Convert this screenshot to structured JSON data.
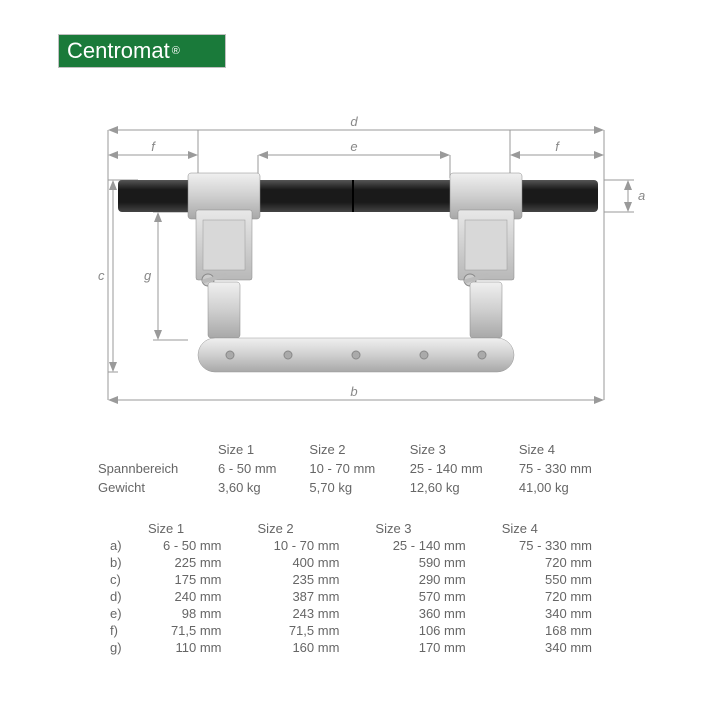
{
  "brand": {
    "name": "Centromat",
    "registered": "®",
    "bg": "#1a7a3a",
    "fg": "#ffffff"
  },
  "diagram": {
    "labels": {
      "a": "a",
      "b": "b",
      "c": "c",
      "d": "d",
      "e": "e",
      "f": "f",
      "g": "g"
    },
    "product_image_alt": "pipe clamp device photograph with dimension callouts",
    "colors": {
      "pipe": "#2a2a2a",
      "metal_light": "#d8d8d8",
      "metal_mid": "#b8b8b8",
      "metal_dark": "#9a9a9a",
      "dim_line": "#9a9a9a",
      "label": "#888888"
    }
  },
  "summary_table": {
    "header_blank": "",
    "headers": [
      "Size 1",
      "Size 2",
      "Size 3",
      "Size 4"
    ],
    "rows": [
      {
        "label": "Spannbereich",
        "values": [
          "6 - 50 mm",
          "10 - 70 mm",
          "25 - 140 mm",
          "75 - 330 mm"
        ]
      },
      {
        "label": "Gewicht",
        "values": [
          "3,60 kg",
          "5,70 kg",
          "12,60 kg",
          "41,00 kg"
        ]
      }
    ]
  },
  "dim_table": {
    "headers": [
      "Size 1",
      "Size 2",
      "Size 3",
      "Size 4"
    ],
    "rows": [
      {
        "key": "a)",
        "values": [
          "6 - 50 mm",
          "10 - 70 mm",
          "25 - 140 mm",
          "75 - 330 mm"
        ]
      },
      {
        "key": "b)",
        "values": [
          "225 mm",
          "400 mm",
          "590 mm",
          "720 mm"
        ]
      },
      {
        "key": "c)",
        "values": [
          "175 mm",
          "235 mm",
          "290 mm",
          "550 mm"
        ]
      },
      {
        "key": "d)",
        "values": [
          "240 mm",
          "387 mm",
          "570 mm",
          "720 mm"
        ]
      },
      {
        "key": "e)",
        "values": [
          "98 mm",
          "243 mm",
          "360 mm",
          "340 mm"
        ]
      },
      {
        "key": "f)",
        "values": [
          "71,5 mm",
          "71,5 mm",
          "106 mm",
          "168 mm"
        ]
      },
      {
        "key": "g)",
        "values": [
          "110 mm",
          "160 mm",
          "170 mm",
          "340 mm"
        ]
      }
    ]
  }
}
